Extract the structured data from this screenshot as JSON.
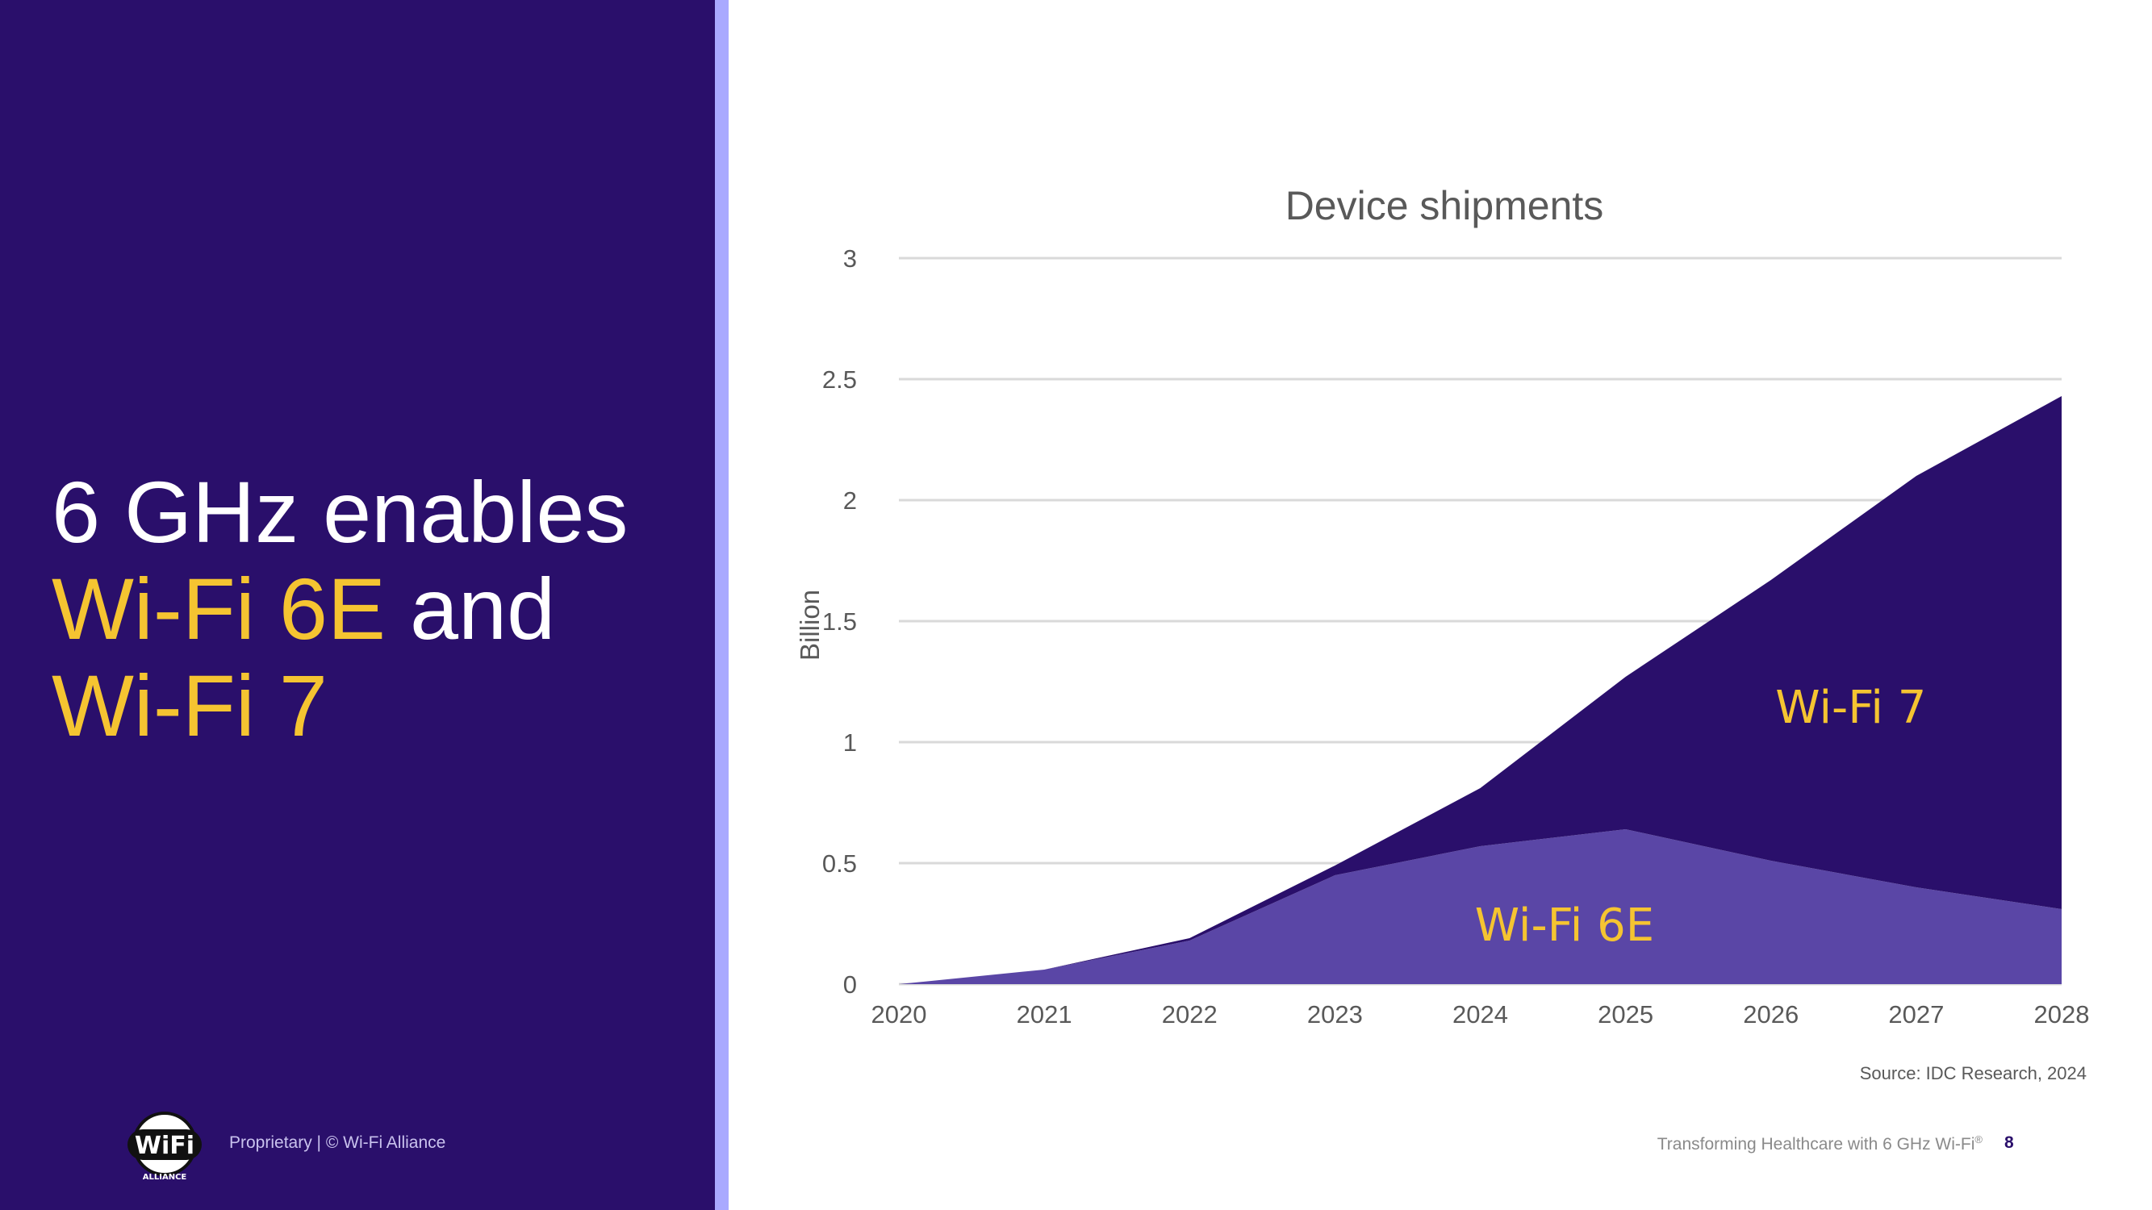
{
  "headline": {
    "line1": "6 GHz enables",
    "line2_highlight": "Wi-Fi 6E",
    "line2_rest": " and",
    "line3_highlight": "Wi-Fi 7"
  },
  "footer": {
    "left_text": "Proprietary | © Wi-Fi Alliance",
    "right_text": "Transforming Healthcare with 6 GHz Wi-Fi",
    "right_mark": "®",
    "page_number": "8",
    "source": "Source: IDC Research, 2024"
  },
  "logo": {
    "word": "WiFi",
    "sub": "ALLIANCE"
  },
  "colors": {
    "panel": "#2a0f6b",
    "accent_bar": "#a9a9ff",
    "highlight": "#f5c431",
    "wifi7": "#2a0f6b",
    "wifi6e": "#5a46a6"
  },
  "chart_data": {
    "type": "area",
    "stacked": true,
    "title": "Device shipments",
    "ylabel": "Billion",
    "xlabel": "",
    "x": [
      2020,
      2021,
      2022,
      2023,
      2024,
      2025,
      2026,
      2027,
      2028
    ],
    "ylim": [
      0,
      3
    ],
    "yticks": [
      0,
      0.5,
      1,
      1.5,
      2,
      2.5,
      3
    ],
    "ytick_labels": [
      "0",
      "0.5",
      "1",
      "1.5",
      "2",
      "2.5",
      "3"
    ],
    "grid": true,
    "legend": "in-chart labels",
    "series": [
      {
        "name": "Wi-Fi 6E",
        "color": "#5a46a6",
        "label_color": "#f5c431",
        "values": [
          0.0,
          0.06,
          0.18,
          0.45,
          0.57,
          0.64,
          0.51,
          0.4,
          0.31
        ]
      },
      {
        "name": "Wi-Fi 7",
        "color": "#2a0f6b",
        "label_color": "#f5c431",
        "values": [
          0.0,
          0.0,
          0.01,
          0.04,
          0.24,
          0.63,
          1.16,
          1.7,
          2.12
        ]
      }
    ]
  }
}
